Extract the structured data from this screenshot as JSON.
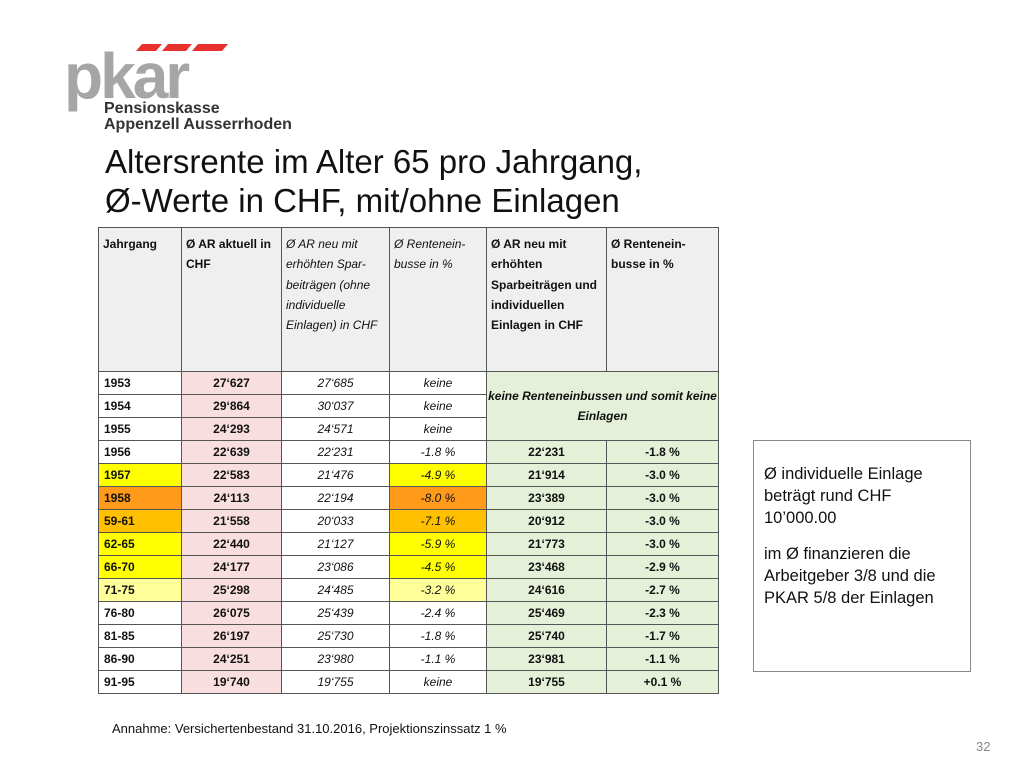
{
  "logo": {
    "brand": "pkar",
    "line1": "Pensionskasse",
    "line2": "Appenzell Ausserrhoden",
    "colors": {
      "gray": "#a6a6a6",
      "red": "#e8322f"
    }
  },
  "title": {
    "line1": "Altersrente im Alter 65 pro Jahrgang,",
    "line2": "Ø-Werte in CHF, mit/ohne Einlagen"
  },
  "table": {
    "headers": [
      "Jahrgang",
      "Ø AR aktuell in CHF",
      "Ø AR neu mit erhöhten Spar-beiträgen (ohne individuelle Einlagen) in CHF",
      "Ø Rentenein-busse in %",
      "Ø AR neu mit erhöhten Sparbeiträgen und individuellen Einlagen in CHF",
      "Ø Rentenein-busse in %"
    ],
    "merged_note": "keine Renteneinbussen und somit keine Einlagen",
    "rows": [
      {
        "jahrgang": "1953",
        "ar_aktuell": "27‘627",
        "ar_neu": "27‘685",
        "einbusse": "keine"
      },
      {
        "jahrgang": "1954",
        "ar_aktuell": "29‘864",
        "ar_neu": "30‘037",
        "einbusse": "keine"
      },
      {
        "jahrgang": "1955",
        "ar_aktuell": "24‘293",
        "ar_neu": "24‘571",
        "einbusse": "keine"
      },
      {
        "jahrgang": "1956",
        "ar_aktuell": "22‘639",
        "ar_neu": "22‘231",
        "einbusse": "-1.8 %",
        "ar_einlagen": "22‘231",
        "einbusse2": "-1.8 %"
      },
      {
        "jahrgang": "1957",
        "ar_aktuell": "22‘583",
        "ar_neu": "21‘476",
        "einbusse": "-4.9 %",
        "ar_einlagen": "21‘914",
        "einbusse2": "-3.0 %",
        "highlight": "yellow"
      },
      {
        "jahrgang": "1958",
        "ar_aktuell": "24‘113",
        "ar_neu": "22‘194",
        "einbusse": "-8.0 %",
        "ar_einlagen": "23‘389",
        "einbusse2": "-3.0 %",
        "highlight": "orange"
      },
      {
        "jahrgang": "59-61",
        "ar_aktuell": "21‘558",
        "ar_neu": "20‘033",
        "einbusse": "-7.1 %",
        "ar_einlagen": "20‘912",
        "einbusse2": "-3.0 %",
        "highlight": "lightorange"
      },
      {
        "jahrgang": "62-65",
        "ar_aktuell": "22‘440",
        "ar_neu": "21‘127",
        "einbusse": "-5.9 %",
        "ar_einlagen": "21‘773",
        "einbusse2": "-3.0 %",
        "highlight": "yellow"
      },
      {
        "jahrgang": "66-70",
        "ar_aktuell": "24‘177",
        "ar_neu": "23‘086",
        "einbusse": "-4.5 %",
        "ar_einlagen": "23‘468",
        "einbusse2": "-2.9 %",
        "highlight": "yellow"
      },
      {
        "jahrgang": "71-75",
        "ar_aktuell": "25‘298",
        "ar_neu": "24‘485",
        "einbusse": "-3.2 %",
        "ar_einlagen": "24‘616",
        "einbusse2": "-2.7 %",
        "highlight": "pale"
      },
      {
        "jahrgang": "76-80",
        "ar_aktuell": "26‘075",
        "ar_neu": "25‘439",
        "einbusse": "-2.4 %",
        "ar_einlagen": "25‘469",
        "einbusse2": "-2.3 %"
      },
      {
        "jahrgang": "81-85",
        "ar_aktuell": "26‘197",
        "ar_neu": "25‘730",
        "einbusse": "-1.8 %",
        "ar_einlagen": "25‘740",
        "einbusse2": "-1.7 %"
      },
      {
        "jahrgang": "86-90",
        "ar_aktuell": "24‘251",
        "ar_neu": "23‘980",
        "einbusse": "-1.1 %",
        "ar_einlagen": "23‘981",
        "einbusse2": "-1.1 %"
      },
      {
        "jahrgang": "91-95",
        "ar_aktuell": "19‘740",
        "ar_neu": "19‘755",
        "einbusse": "keine",
        "ar_einlagen": "19‘755",
        "einbusse2": "+0.1 %"
      }
    ]
  },
  "footnote": "Annahme: Versichertenbestand 31.10.2016, Projektionszinssatz 1 %",
  "side_box": {
    "para1": "Ø individuelle Einlage beträgt rund CHF 10’000.00",
    "para2": "im Ø finanzieren die Arbeitgeber 3/8 und die PKAR 5/8 der Einlagen"
  },
  "page_number": "32"
}
